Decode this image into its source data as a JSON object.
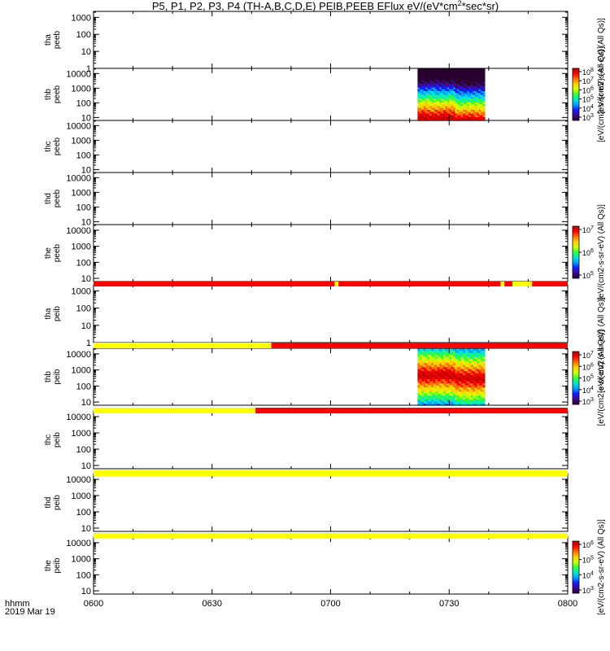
{
  "chart_data": {
    "type": "heatmap",
    "title": "P5, P1, P2, P3, P4 (TH-A,B,C,D,E) PEIB,PEEB EFlux eV/(eV*cm²*sec*sr)",
    "title_parts": [
      "P5, P1, P2, P3, P4 (TH-A,B,C,D,E) PEIB,PEEB EFlux eV/(eV*cm",
      "2",
      "*sec*sr)"
    ],
    "x_axis": {
      "label_line1": "hhmm",
      "label_line2": "2019 Mar 19",
      "range": [
        "0600",
        "0800"
      ],
      "ticks": [
        "0600",
        "0630",
        "0700",
        "0730",
        "0800"
      ]
    },
    "panels": [
      {
        "label": [
          "tha",
          "peeb"
        ],
        "yticks": [
          "1000",
          "100",
          "10",
          "1"
        ],
        "ylog": [
          0,
          3.35
        ],
        "data": false
      },
      {
        "label": [
          "thb",
          "peeb"
        ],
        "yticks": [
          "10000",
          "1000",
          "100",
          "10"
        ],
        "ylog": [
          0.8,
          4.35
        ],
        "data": true,
        "data_time": [
          "0722",
          "0739"
        ],
        "flux_peak_energy_eV": 10
      },
      {
        "label": [
          "thc",
          "peeb"
        ],
        "yticks": [
          "10000",
          "1000",
          "100",
          "10"
        ],
        "ylog": [
          0.8,
          4.35
        ],
        "data": false
      },
      {
        "label": [
          "thd",
          "peeb"
        ],
        "yticks": [
          "10000",
          "1000",
          "100",
          "10"
        ],
        "ylog": [
          0.8,
          4.35
        ],
        "data": false
      },
      {
        "label": [
          "the",
          "peeb"
        ],
        "yticks": [
          "10000",
          "1000",
          "100",
          "10"
        ],
        "ylog": [
          0.8,
          4.35
        ],
        "data": false
      },
      {
        "label": [
          "tha",
          "peib"
        ],
        "yticks": [
          "1000",
          "100",
          "10",
          "1"
        ],
        "ylog": [
          0,
          3.35
        ],
        "data": false
      },
      {
        "label": [
          "thb",
          "peib"
        ],
        "yticks": [
          "10000",
          "1000",
          "100",
          "10"
        ],
        "ylog": [
          0.8,
          4.35
        ],
        "data": true,
        "data_time": [
          "0722",
          "0739"
        ],
        "flux_peak_energy_eV": 500
      },
      {
        "label": [
          "thc",
          "peib"
        ],
        "yticks": [
          "10000",
          "1000",
          "100",
          "10"
        ],
        "ylog": [
          0.8,
          4.35
        ],
        "data": false
      },
      {
        "label": [
          "thd",
          "peib"
        ],
        "yticks": [
          "10000",
          "1000",
          "100",
          "10"
        ],
        "ylog": [
          0.8,
          4.35
        ],
        "data": false
      },
      {
        "label": [
          "the",
          "peib"
        ],
        "yticks": [
          "10000",
          "1000",
          "100",
          "10"
        ],
        "ylog": [
          0.8,
          4.35
        ],
        "data": false
      }
    ],
    "mode_bars": [
      {
        "after_panel": 4,
        "segments": [
          {
            "from": "0600",
            "to": "0701",
            "color": "red"
          },
          {
            "from": "0701",
            "to": "0702",
            "color": "yellow"
          },
          {
            "from": "0702",
            "to": "0743",
            "color": "red"
          },
          {
            "from": "0743",
            "to": "0744",
            "color": "yellow"
          },
          {
            "from": "0744",
            "to": "0746",
            "color": "red"
          },
          {
            "from": "0746",
            "to": "0751",
            "color": "yellow"
          },
          {
            "from": "0751",
            "to": "0800",
            "color": "red"
          }
        ]
      },
      {
        "after_panel": 5,
        "segments": [
          {
            "from": "0600",
            "to": "0645",
            "color": "yellow"
          },
          {
            "from": "0645",
            "to": "0800",
            "color": "red"
          }
        ]
      },
      {
        "after_panel": 6,
        "segments": [
          {
            "from": "0600",
            "to": "0641",
            "color": "yellow"
          },
          {
            "from": "0641",
            "to": "0800",
            "color": "red"
          }
        ]
      },
      {
        "after_panel": 7,
        "segments": [
          {
            "from": "0600",
            "to": "0800",
            "color": "yellow"
          }
        ]
      },
      {
        "after_panel": 8,
        "segments": [
          {
            "from": "0600",
            "to": "0800",
            "color": "yellow"
          }
        ]
      }
    ],
    "colorbars": [
      {
        "for_panel": 1,
        "label": "[eV/(cm2-s-sr-eV) (All Qs)]",
        "ticks": [
          "10^3",
          "10^4",
          "10^5",
          "10^6",
          "10^7",
          "10^8"
        ]
      },
      {
        "for_panel": 4,
        "label": "[eV/(cm2-s-sr-eV) (All Qs)]",
        "ticks": [
          "10^5",
          "10^6",
          "10^7"
        ]
      },
      {
        "for_panel": 6,
        "label": "[eV/(cm2-s-sr-eV) (All Qs)]",
        "ticks": [
          "10^3",
          "10^4",
          "10^5",
          "10^6",
          "10^7"
        ]
      },
      {
        "for_panel": 9,
        "label": "[eV/(cm2-s-sr-eV) (All Qs)]",
        "ticks": [
          "10^3",
          "10^4",
          "10^5",
          "10^6"
        ]
      }
    ],
    "side_labels": [
      {
        "text": "[eV/(cm2-s-sr-eV) (All Qs)]",
        "between_panels": [
          0,
          1
        ]
      },
      {
        "text": "[eV/(cm2-s-sr-eV) (All Qs)]",
        "between_panels": [
          5,
          6
        ]
      }
    ],
    "colormap": [
      "#2a0030",
      "#3b0a8c",
      "#1a1aff",
      "#00a0ff",
      "#00e8d0",
      "#30ff40",
      "#d0ff00",
      "#ffd000",
      "#ff7000",
      "#ff0000",
      "#c00000"
    ]
  }
}
